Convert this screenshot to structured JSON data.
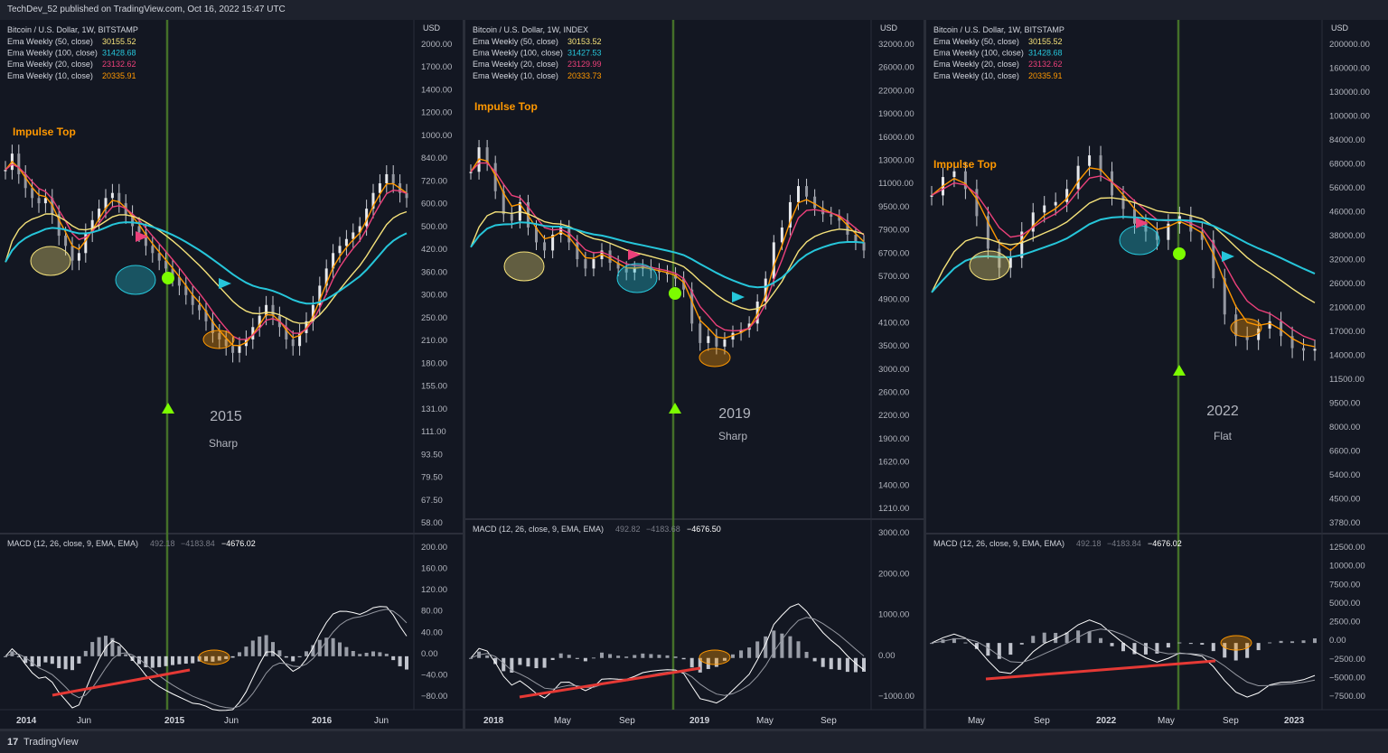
{
  "header": {
    "published": "TechDev_52 published on TradingView.com, Oct 16, 2022 15:47 UTC"
  },
  "footer": {
    "logo_glyph": "17",
    "brand": "TradingView"
  },
  "colors": {
    "bg": "#131722",
    "ema50": "#f5e27a",
    "ema100": "#26c6da",
    "ema20": "#ec407a",
    "ema10": "#ff9800",
    "green": "#7cfc00",
    "vline": "#4a7a2a"
  },
  "chart_data": [
    {
      "type": "line",
      "title": "Bitcoin / U.S. Dollar, 1W, BITSTAMP",
      "legend": [
        {
          "label": "Ema Weekly (50, close)",
          "value": "30155.52"
        },
        {
          "label": "Ema Weekly (100, close)",
          "value": "31428.68"
        },
        {
          "label": "Ema Weekly (20, close)",
          "value": "23132.62"
        },
        {
          "label": "Ema Weekly (10, close)",
          "value": "20335.91"
        }
      ],
      "currency": "USD",
      "price_ticks": [
        "2000.00",
        "1700.00",
        "1400.00",
        "1200.00",
        "1000.00",
        "840.00",
        "720.00",
        "600.00",
        "500.00",
        "420.00",
        "360.00",
        "300.00",
        "250.00",
        "210.00",
        "180.00",
        "155.00",
        "131.00",
        "111.00",
        "93.50",
        "79.50",
        "67.50",
        "58.00"
      ],
      "x_ticks": [
        "2014",
        "Jun",
        "2015",
        "Jun",
        "2016",
        "Jun"
      ],
      "annotations": {
        "impulse": "Impulse Top",
        "year": "2015",
        "style": "Sharp"
      },
      "macd_legend": {
        "label": "MACD (12, 26, close, 9, EMA, EMA)",
        "v1": "492.18",
        "v2": "−4183.84",
        "v3": "−4676.02"
      },
      "macd_ticks": [
        "200.00",
        "160.00",
        "120.00",
        "80.00",
        "40.00",
        "0.00",
        "−40.00",
        "−80.00"
      ],
      "prices": [
        720,
        800,
        700,
        640,
        600,
        580,
        600,
        540,
        470,
        440,
        400,
        420,
        480,
        520,
        560,
        600,
        620,
        580,
        540,
        500,
        480,
        440,
        420,
        400,
        380,
        360,
        340,
        320,
        300,
        290,
        270,
        250,
        240,
        230,
        220,
        230,
        240,
        260,
        280,
        300,
        280,
        260,
        240,
        230,
        250,
        270,
        300,
        340,
        380,
        420,
        440,
        460,
        480,
        500,
        560,
        620,
        660,
        700,
        660,
        620,
        600
      ]
    },
    {
      "type": "line",
      "title": "Bitcoin / U.S. Dollar, 1W, INDEX",
      "legend": [
        {
          "label": "Ema Weekly (50, close)",
          "value": "30153.52"
        },
        {
          "label": "Ema Weekly (100, close)",
          "value": "31427.53"
        },
        {
          "label": "Ema Weekly (20, close)",
          "value": "23129.99"
        },
        {
          "label": "Ema Weekly (10, close)",
          "value": "20333.73"
        }
      ],
      "currency": "USD",
      "price_ticks": [
        "32000.00",
        "26000.00",
        "22000.00",
        "19000.00",
        "16000.00",
        "13000.00",
        "11000.00",
        "9500.00",
        "7900.00",
        "6700.00",
        "5700.00",
        "4900.00",
        "4100.00",
        "3500.00",
        "3000.00",
        "2600.00",
        "2200.00",
        "1900.00",
        "1620.00",
        "1400.00",
        "1210.00"
      ],
      "x_ticks": [
        "2018",
        "May",
        "Sep",
        "2019",
        "May",
        "Sep"
      ],
      "annotations": {
        "impulse": "Impulse Top",
        "year": "2019",
        "style": "Sharp"
      },
      "macd_legend": {
        "label": "MACD (12, 26, close, 9, EMA, EMA)",
        "v1": "492.82",
        "v2": "−4183.68",
        "v3": "−4676.50"
      },
      "macd_ticks": [
        "3000.00",
        "2000.00",
        "1000.00",
        "0.00",
        "−1000.00"
      ],
      "prices": [
        14000,
        17000,
        15000,
        12000,
        10000,
        9500,
        11000,
        9000,
        8000,
        7500,
        8500,
        9000,
        8000,
        7000,
        6500,
        7000,
        7500,
        6800,
        6500,
        6300,
        6500,
        6600,
        6400,
        6300,
        6200,
        6000,
        5500,
        4200,
        3600,
        3800,
        3500,
        3700,
        3900,
        4000,
        4200,
        5000,
        6000,
        8000,
        9000,
        11000,
        12500,
        11500,
        10500,
        10000,
        9800,
        9500,
        8500,
        8000,
        7500
      ]
    },
    {
      "type": "line",
      "title": "Bitcoin / U.S. Dollar, 1W, BITSTAMP",
      "legend": [
        {
          "label": "Ema Weekly (50, close)",
          "value": "30155.52"
        },
        {
          "label": "Ema Weekly (100, close)",
          "value": "31428.68"
        },
        {
          "label": "Ema Weekly (20, close)",
          "value": "23132.62"
        },
        {
          "label": "Ema Weekly (10, close)",
          "value": "20335.91"
        }
      ],
      "currency": "USD",
      "price_ticks": [
        "200000.00",
        "160000.00",
        "130000.00",
        "100000.00",
        "84000.00",
        "68000.00",
        "56000.00",
        "46000.00",
        "38000.00",
        "32000.00",
        "26000.00",
        "21000.00",
        "17000.00",
        "14000.00",
        "11500.00",
        "9500.00",
        "8000.00",
        "6600.00",
        "5400.00",
        "4500.00",
        "3780.00"
      ],
      "x_ticks": [
        "May",
        "Sep",
        "2022",
        "May",
        "Sep",
        "2023"
      ],
      "annotations": {
        "impulse": "Impulse Top",
        "year": "2022",
        "style": "Flat"
      },
      "macd_legend": {
        "label": "MACD (12, 26, close, 9, EMA, EMA)",
        "v1": "492.18",
        "v2": "−4183.84",
        "v3": "−4676.02"
      },
      "macd_ticks": [
        "12500.00",
        "10000.00",
        "7500.00",
        "5000.00",
        "2500.00",
        "0.00",
        "−2500.00",
        "−5000.00",
        "−7500.00"
      ],
      "prices": [
        50000,
        56000,
        58000,
        52000,
        44000,
        36000,
        32000,
        34000,
        40000,
        45000,
        47000,
        48000,
        52000,
        60000,
        64000,
        58000,
        50000,
        46000,
        42000,
        40000,
        38000,
        42000,
        44000,
        40000,
        38000,
        30000,
        24000,
        21000,
        20500,
        22000,
        23000,
        21000,
        19500,
        19200,
        19400
      ]
    }
  ]
}
